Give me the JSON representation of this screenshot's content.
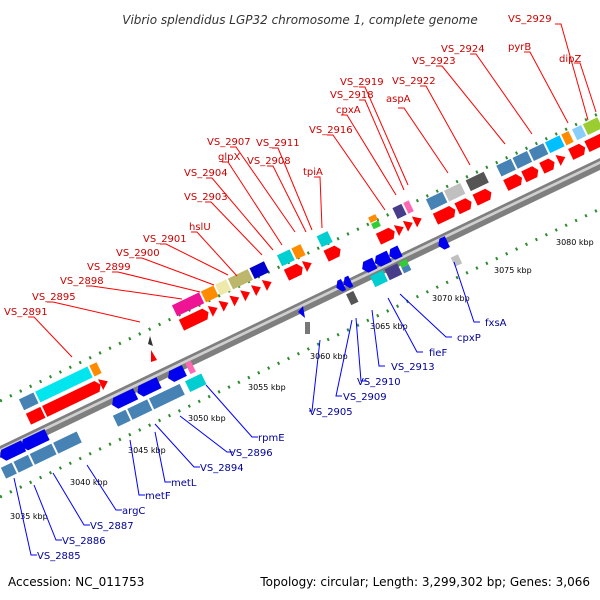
{
  "title": "Vibrio splendidus LGP32 chromosome 1, complete genome",
  "footer": {
    "accession": "Accession: NC_011753",
    "summary": "Topology: circular; Length: 3,299,302 bp; Genes: 3,066"
  },
  "colors": {
    "forward_label": "#cc0000",
    "reverse_label": "#000099",
    "backbone": "#7f7f7f",
    "forward_arrow": "#ff0000",
    "reverse_arrow": "#0000ee"
  },
  "kbp_ticks": [
    "3035 kbp",
    "3040 kbp",
    "3045 kbp",
    "3050 kbp",
    "3055 kbp",
    "3060 kbp",
    "3065 kbp",
    "3070 kbp",
    "3075 kbp",
    "3080 kbp"
  ],
  "forward_labels": [
    "VS_2929",
    "pyrB",
    "dipZ",
    "VS_2924",
    "VS_2923",
    "VS_2922",
    "aspA",
    "VS_2919",
    "VS_2918",
    "cpxA",
    "VS_2916",
    "VS_2911",
    "VS_2907",
    "glpX",
    "VS_2908",
    "VS_2904",
    "tpiA",
    "VS_2903",
    "hslU",
    "VS_2901",
    "VS_2900",
    "VS_2899",
    "VS_2898",
    "VS_2895",
    "VS_2891"
  ],
  "reverse_labels": [
    "fxsA",
    "cpxP",
    "fieF",
    "VS_2913",
    "VS_2910",
    "VS_2909",
    "VS_2905",
    "rpmE",
    "VS_2896",
    "VS_2894",
    "metL",
    "metF",
    "argC",
    "VS_2887",
    "VS_2886",
    "VS_2885"
  ]
}
